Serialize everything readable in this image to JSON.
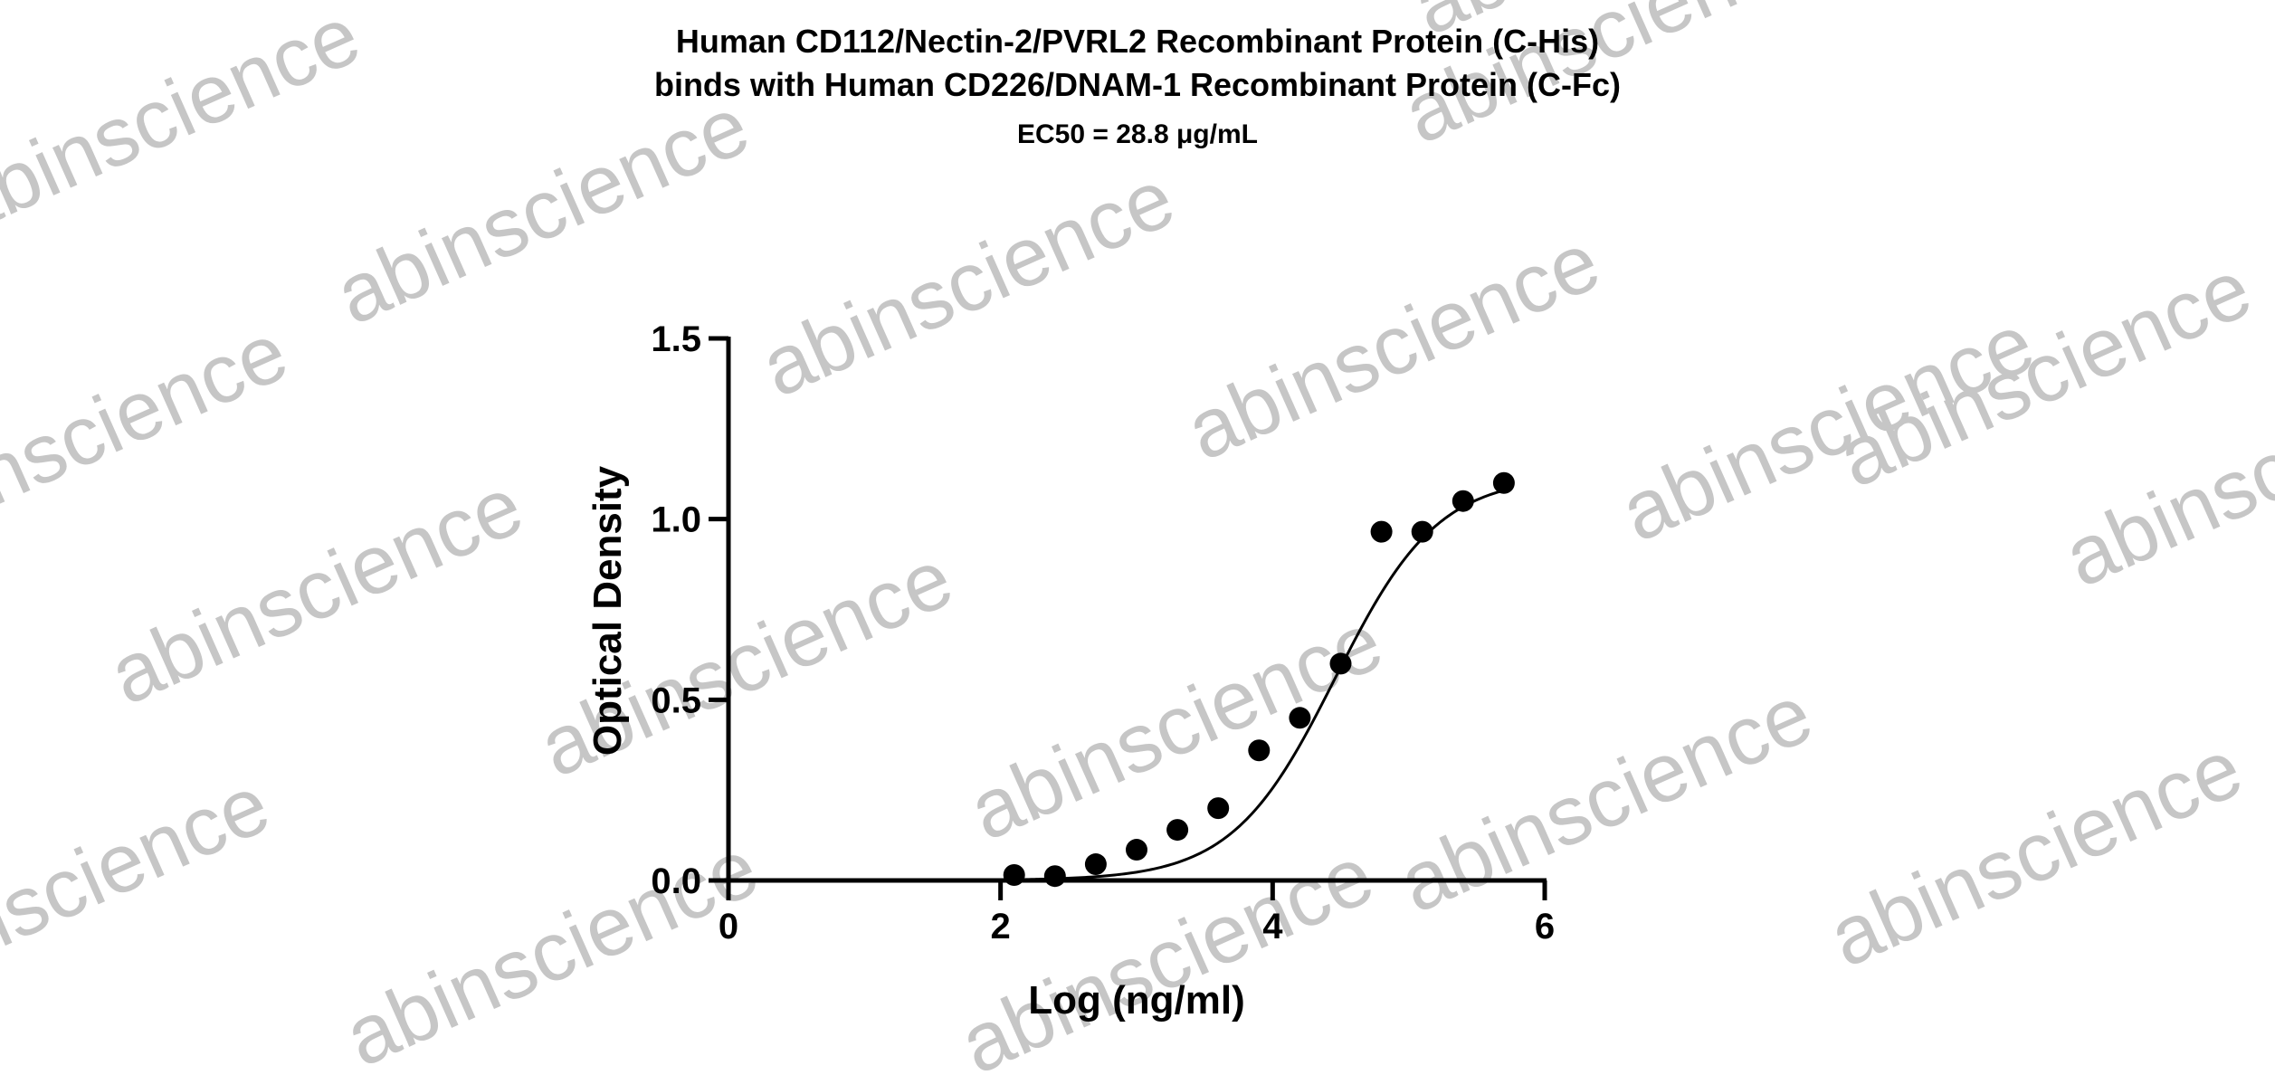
{
  "watermark": {
    "text": "abinscience",
    "color": "#c6c6c6"
  },
  "chart_data": {
    "type": "scatter",
    "title": [
      "Human CD112/Nectin-2/PVRL2 Recombinant Protein (C-His)",
      "binds with Human CD226/DNAM-1 Recombinant Protein (C-Fc)"
    ],
    "subtitle": "EC50 = 28.8 μg/mL",
    "xlabel": "Log (ng/ml)",
    "ylabel": "Optical Density",
    "xlim": [
      0,
      6
    ],
    "ylim": [
      0,
      1.5
    ],
    "x_ticks": [
      "0",
      "2",
      "4",
      "6"
    ],
    "y_ticks": [
      "0.0",
      "0.5",
      "1.0",
      "1.5"
    ],
    "grid": false,
    "legend": "none",
    "points": [
      {
        "x": 2.1,
        "y": 0.015
      },
      {
        "x": 2.4,
        "y": 0.012
      },
      {
        "x": 2.7,
        "y": 0.045
      },
      {
        "x": 3.0,
        "y": 0.085
      },
      {
        "x": 3.3,
        "y": 0.14
      },
      {
        "x": 3.6,
        "y": 0.2
      },
      {
        "x": 3.9,
        "y": 0.36
      },
      {
        "x": 4.2,
        "y": 0.45
      },
      {
        "x": 4.5,
        "y": 0.6
      },
      {
        "x": 4.8,
        "y": 0.965
      },
      {
        "x": 5.1,
        "y": 0.965
      },
      {
        "x": 5.4,
        "y": 1.05
      },
      {
        "x": 5.7,
        "y": 1.1
      }
    ],
    "fit_curve": {
      "model": "4PL",
      "bottom": 0.0,
      "top": 1.12,
      "logEC50": 4.46,
      "hill_slope": 1.15,
      "x_range": [
        2.1,
        5.7
      ]
    },
    "colors": {
      "points": "#000000",
      "curve": "#000000",
      "axes": "#000000"
    }
  }
}
